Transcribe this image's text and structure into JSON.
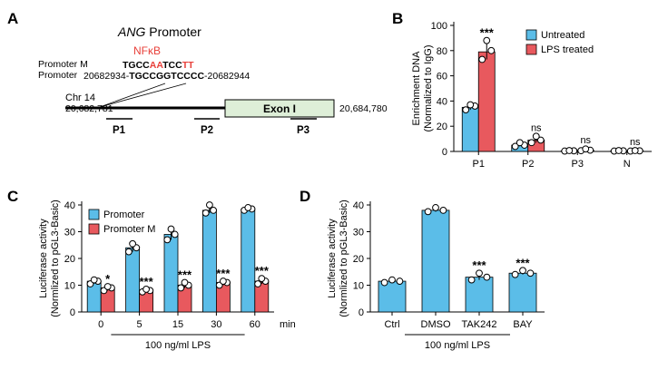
{
  "colors": {
    "blue": "#5bbde8",
    "red": "#e8595e",
    "exon": "#deefd8",
    "nfkb": "#e8403a",
    "marker": "#ffffff",
    "ink": "#000000"
  },
  "panelA": {
    "letter": "A",
    "title_italic": "ANG",
    "title_rest": " Promoter",
    "nfkb_label": "NFκB",
    "promoter_m_label": "Promoter M",
    "promoter_label": "Promoter",
    "seq_m": [
      {
        "t": "TGCC",
        "red": false
      },
      {
        "t": "AA",
        "red": true
      },
      {
        "t": "TCC",
        "red": false
      },
      {
        "t": "TT",
        "red": true
      }
    ],
    "seq_start": "20682934-",
    "seq_wt": "TGCCGGTCCCC",
    "seq_end": "-20682944",
    "chr_label": "Chr 14",
    "chr_left": "20,682,781",
    "chr_right": "20,684,780",
    "exon_label": "Exon I",
    "primers": [
      "P1",
      "P2",
      "P3"
    ]
  },
  "chart_data": [
    {
      "panel": "B",
      "type": "bar",
      "ylabel": "Enrichment DNA\n(Normalized to IgG)",
      "ylim": [
        0,
        100
      ],
      "yticks": [
        0,
        20,
        40,
        60,
        80,
        100
      ],
      "categories": [
        "P1",
        "P2",
        "P3",
        "N"
      ],
      "legend_position": "top-right",
      "series": [
        {
          "name": "Untreated",
          "values": [
            35,
            5,
            0.5,
            0.5
          ],
          "points": [
            [
              33,
              36,
              37
            ],
            [
              4,
              5,
              7
            ],
            [
              0.3,
              0.5,
              0.7
            ],
            [
              0.3,
              0.5,
              0.7
            ]
          ]
        },
        {
          "name": "LPS treated",
          "values": [
            79,
            9,
            1,
            0.5
          ],
          "points": [
            [
              73,
              80,
              88
            ],
            [
              7,
              9,
              12
            ],
            [
              0.6,
              1,
              2
            ],
            [
              0.3,
              0.5,
              0.7
            ]
          ]
        }
      ],
      "annotations": [
        "***",
        "ns",
        "ns",
        "ns"
      ]
    },
    {
      "panel": "C",
      "type": "bar",
      "ylabel": "Luciferase activity\n(Normlized to pGL3-Basic)",
      "ylim": [
        0,
        40
      ],
      "yticks": [
        0,
        10,
        20,
        30,
        40
      ],
      "categories": [
        "0",
        "5",
        "15",
        "30",
        "60"
      ],
      "x_unit": "min",
      "group_label": "100 ng/ml LPS",
      "legend_position": "top-left",
      "series": [
        {
          "name": "Promoter",
          "values": [
            11.5,
            24,
            29,
            38,
            38.5
          ],
          "points": [
            [
              10.5,
              11.5,
              12
            ],
            [
              22.5,
              24,
              25.5
            ],
            [
              27,
              29,
              31
            ],
            [
              37,
              38,
              40
            ],
            [
              38,
              38.5,
              39
            ]
          ]
        },
        {
          "name": "Promoter M",
          "values": [
            9,
            8,
            10,
            11,
            11.5
          ],
          "points": [
            [
              8,
              9,
              9.5
            ],
            [
              7.5,
              8,
              8.5
            ],
            [
              9,
              10,
              11
            ],
            [
              10,
              11,
              11.5
            ],
            [
              10.5,
              11.5,
              12.5
            ]
          ]
        }
      ],
      "annotations": [
        "*",
        "***",
        "***",
        "***",
        "***"
      ]
    },
    {
      "panel": "D",
      "type": "bar",
      "ylabel": "Luciferase activity\n(Normlized to pGL3-Basic)",
      "ylim": [
        0,
        40
      ],
      "yticks": [
        0,
        10,
        20,
        30,
        40
      ],
      "categories": [
        "Ctrl",
        "DMSO",
        "TAK242",
        "BAY"
      ],
      "group_label": "100 ng/ml LPS",
      "series": [
        {
          "name": "",
          "values": [
            11.5,
            38,
            13,
            14.5
          ],
          "points": [
            [
              11,
              11.5,
              12
            ],
            [
              37.5,
              38,
              39
            ],
            [
              12,
              13,
              14.5
            ],
            [
              14,
              14.5,
              15.5
            ]
          ]
        }
      ],
      "annotations": [
        "",
        "",
        "***",
        "***"
      ]
    }
  ]
}
